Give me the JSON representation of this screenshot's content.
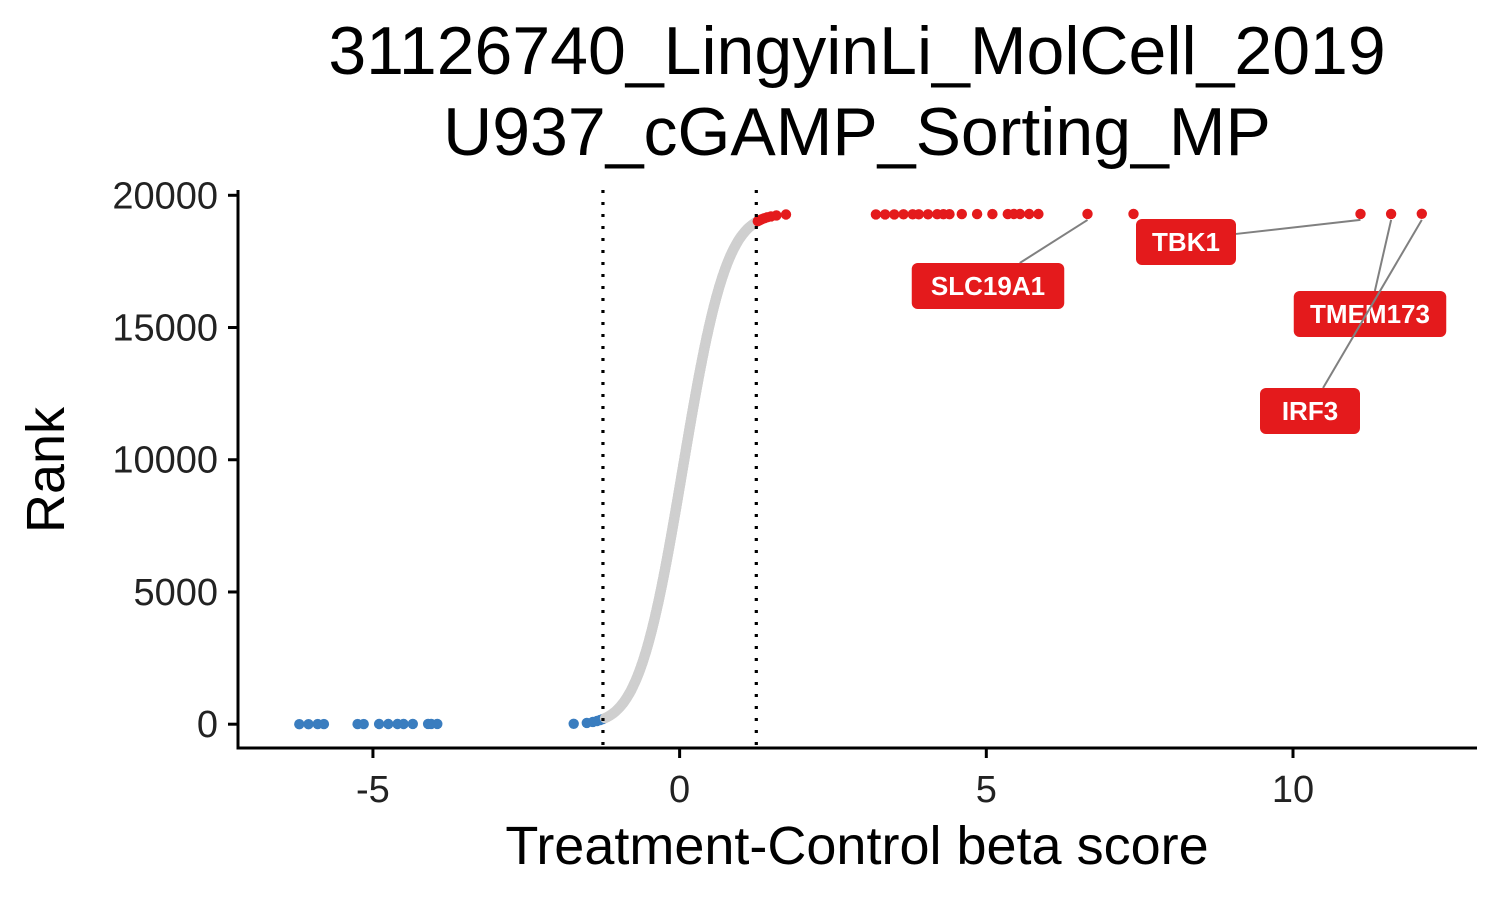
{
  "chart_data": {
    "type": "scatter",
    "title_lines": [
      "31126740_LingyinLi_MolCell_2019",
      "U937_cGAMP_Sorting_MP"
    ],
    "xlabel": "Treatment-Control beta score",
    "ylabel": "Rank",
    "xlim": [
      -7.2,
      13.0
    ],
    "ylim": [
      -900,
      20200
    ],
    "x_ticks": [
      -5,
      0,
      5,
      10
    ],
    "x_tick_labels": [
      "-5",
      "0",
      "5",
      "10"
    ],
    "y_ticks": [
      0,
      5000,
      10000,
      15000,
      20000
    ],
    "y_tick_labels": [
      "0",
      "5000",
      "10000",
      "15000",
      "20000"
    ],
    "grid": false,
    "thresholds": [
      -1.25,
      1.25
    ],
    "n_genes": 19300,
    "colors": {
      "negative": "#3a7dbf",
      "neutral": "#cfcfcf",
      "positive": "#e41a1c"
    },
    "negative_tail": {
      "x": [
        -6.2,
        -6.05,
        -5.9,
        -5.8,
        -5.25,
        -5.15,
        -4.9,
        -4.75,
        -4.6,
        -4.5,
        -4.35,
        -4.1,
        -4.05,
        -3.95
      ],
      "y": [
        0,
        1,
        2,
        3,
        4,
        5,
        6,
        7,
        8,
        9,
        10,
        11,
        12,
        13
      ]
    },
    "positive_tail": {
      "x": [
        3.2,
        3.35,
        3.5,
        3.65,
        3.8,
        3.9,
        4.05,
        4.2,
        4.3,
        4.4,
        4.6,
        4.85,
        5.1,
        5.35,
        5.45,
        5.55,
        5.7,
        5.85,
        6.65,
        7.4,
        11.1,
        11.6,
        12.1
      ],
      "y": [
        19277,
        19278,
        19279,
        19280,
        19281,
        19282,
        19283,
        19284,
        19285,
        19286,
        19287,
        19288,
        19289,
        19290,
        19291,
        19292,
        19293,
        19294,
        19295,
        19296,
        19297,
        19298,
        19299
      ]
    },
    "labeled_genes": [
      {
        "name": "SLC19A1",
        "x": 6.65,
        "y": 19295
      },
      {
        "name": "TBK1",
        "x": 11.1,
        "y": 19297
      },
      {
        "name": "TMEM173",
        "x": 11.6,
        "y": 19298
      },
      {
        "name": "IRF3",
        "x": 12.1,
        "y": 19299
      }
    ]
  }
}
